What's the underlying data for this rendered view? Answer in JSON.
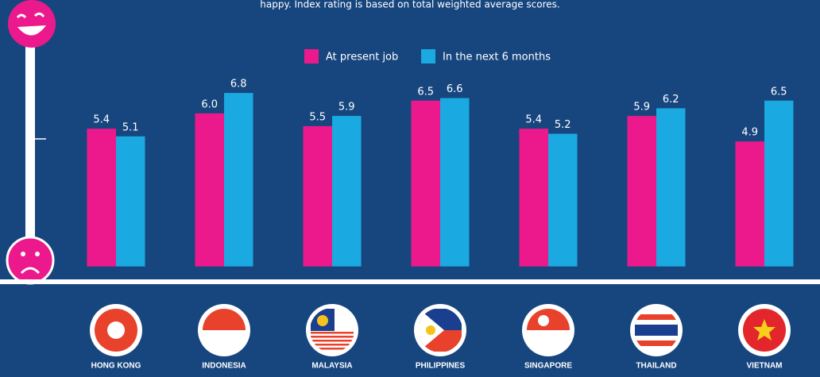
{
  "chart_data": {
    "type": "bar",
    "subtitle": "happy. Index rating is based on total weighted average scores.",
    "categories": [
      "HONG KONG",
      "INDONESIA",
      "MALAYSIA",
      "PHILIPPINES",
      "SINGAPORE",
      "THAILAND",
      "VIETNAM"
    ],
    "series": [
      {
        "name": "At present job",
        "color": "#ec198c",
        "values": [
          5.4,
          6,
          5.5,
          6.5,
          5.4,
          5.9,
          4.9
        ],
        "value_labels": [
          "5.4",
          "6.0",
          "5.5",
          "6.5",
          "5.4",
          "5.9",
          "4.9"
        ]
      },
      {
        "name": "In the next 6 months",
        "color": "#1aa9e1",
        "values": [
          5.1,
          6.8,
          5.9,
          6.6,
          5.2,
          6.2,
          6.5
        ],
        "value_labels": [
          "5.1",
          "6.8",
          "5.9",
          "6.6",
          "5.2",
          "6.2",
          "6.5"
        ]
      }
    ],
    "ylim": [
      -0.6,
      7.8
    ]
  }
}
